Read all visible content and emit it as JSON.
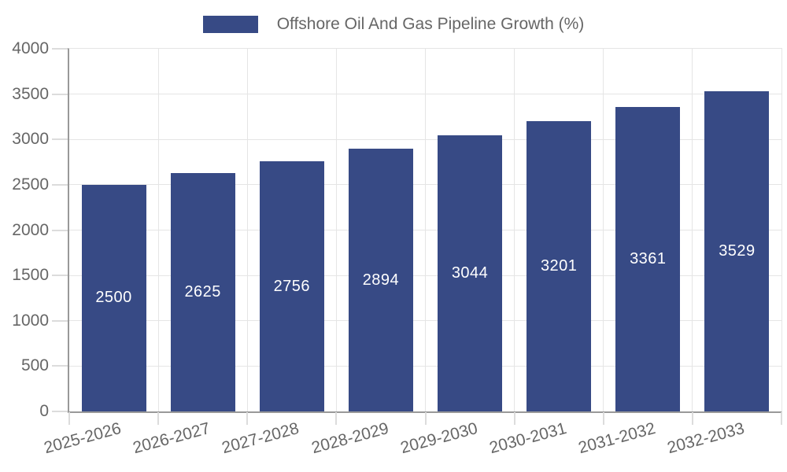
{
  "chart_data": {
    "type": "bar",
    "title": "",
    "legend": {
      "label": "Offshore Oil And Gas Pipeline Growth (%)",
      "position": "top-center"
    },
    "categories": [
      "2025-2026",
      "2026-2027",
      "2027-2028",
      "2028-2029",
      "2029-2030",
      "2030-2031",
      "2031-2032",
      "2032-2033"
    ],
    "values": [
      2500,
      2625,
      2756,
      2894,
      3044,
      3201,
      3361,
      3529
    ],
    "xlabel": "",
    "ylabel": "",
    "ylim": [
      0,
      4000
    ],
    "yticks": [
      0,
      500,
      1000,
      1500,
      2000,
      2500,
      3000,
      3500,
      4000
    ],
    "grid": true,
    "bar_value_labels_shown": true,
    "x_label_rotation_deg": -15
  },
  "colors": {
    "bar_fill": "#374A85",
    "bar_label_text": "#FFFFFF",
    "grid_line": "#E5E5E5",
    "tick_mark": "#DCDCDC",
    "axis_line": "#999999",
    "tick_text": "#666666",
    "legend_text": "#666666",
    "background": "#FFFFFF"
  }
}
